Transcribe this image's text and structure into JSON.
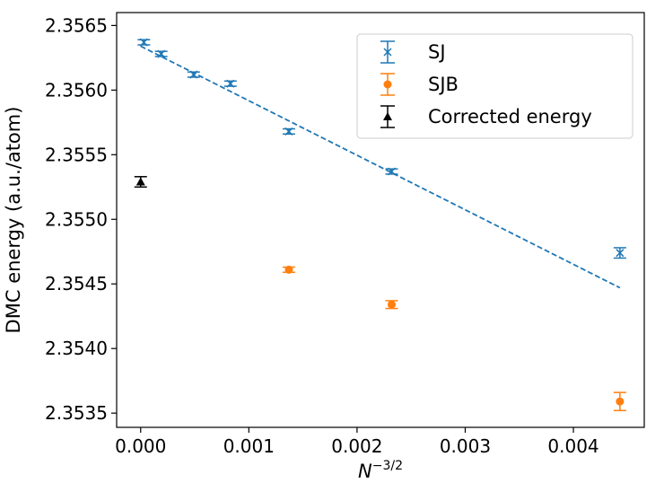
{
  "chart_data": {
    "type": "scatter",
    "xlabel": "N",
    "xlabel_superscript": "−3/2",
    "ylabel": "DMC energy (a.u./atom)",
    "xlim": [
      -0.000222,
      0.004655
    ],
    "ylim": [
      2.35339,
      2.3566
    ],
    "x_ticks": [
      0.0,
      0.001,
      0.002,
      0.003,
      0.004
    ],
    "x_tick_labels": [
      "0.000",
      "0.001",
      "0.002",
      "0.003",
      "0.004"
    ],
    "y_ticks": [
      2.3535,
      2.354,
      2.3545,
      2.355,
      2.3555,
      2.356,
      2.3565
    ],
    "y_tick_labels": [
      "2.3535",
      "2.3540",
      "2.3545",
      "2.3550",
      "2.3555",
      "2.3560",
      "2.3565"
    ],
    "grid": false,
    "legend_position": "top-right",
    "series": [
      {
        "name": "SJ",
        "color": "#1f77b4",
        "marker": "x",
        "points": [
          {
            "x": 3e-05,
            "y": 2.35637,
            "err": 2e-05
          },
          {
            "x": 0.00019,
            "y": 2.35628,
            "err": 2e-05
          },
          {
            "x": 0.00049,
            "y": 2.35612,
            "err": 2e-05
          },
          {
            "x": 0.00083,
            "y": 2.35605,
            "err": 2e-05
          },
          {
            "x": 0.00137,
            "y": 2.35568,
            "err": 2e-05
          },
          {
            "x": 0.00232,
            "y": 2.35537,
            "err": 2e-05
          },
          {
            "x": 0.00443,
            "y": 2.35474,
            "err": 4e-05
          }
        ]
      },
      {
        "name": "SJB",
        "color": "#ff7f0e",
        "marker": "circle",
        "points": [
          {
            "x": 0.00137,
            "y": 2.35461,
            "err": 2e-05
          },
          {
            "x": 0.00232,
            "y": 2.35434,
            "err": 3e-05
          },
          {
            "x": 0.00443,
            "y": 2.35359,
            "err": 7e-05
          }
        ]
      },
      {
        "name": "Corrected energy",
        "color": "#000000",
        "marker": "triangle",
        "points": [
          {
            "x": 0.0,
            "y": 2.35529,
            "err": 4e-05
          }
        ]
      }
    ],
    "fit_line": {
      "color": "#1f77b4",
      "style": "dashed",
      "x": [
        0.0,
        0.00443
      ],
      "y": [
        2.35634,
        2.35447
      ]
    }
  }
}
